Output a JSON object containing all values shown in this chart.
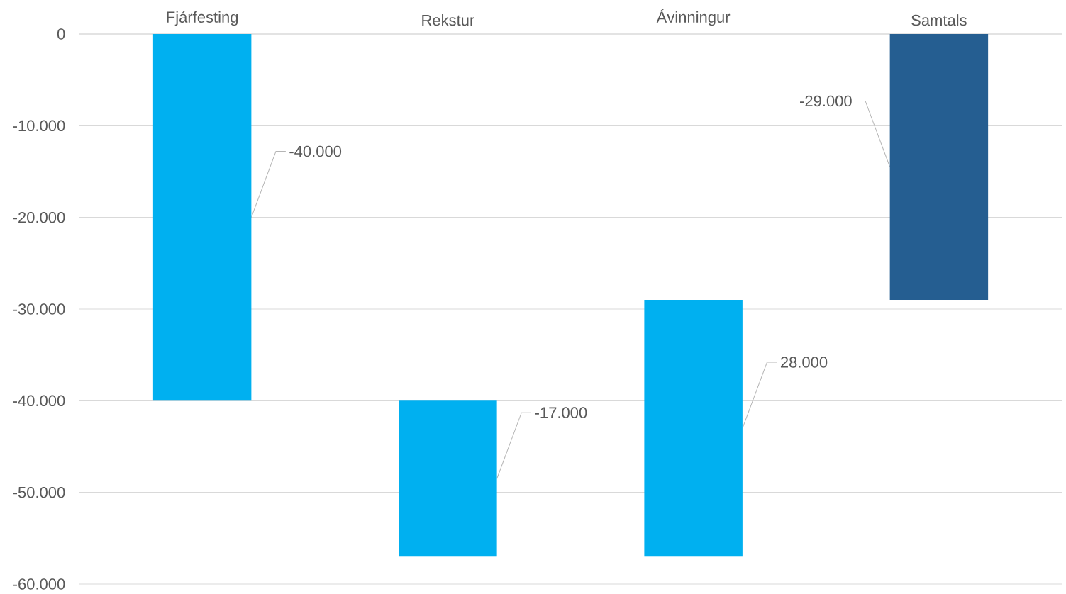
{
  "chart_data": {
    "type": "bar",
    "categories": [
      "Fjárfesting",
      "Rekstur",
      "Ávinningur",
      "Samtals"
    ],
    "values": [
      -40000,
      -17000,
      28000,
      -29000
    ],
    "base": [
      0,
      -40000,
      -57000,
      0
    ],
    "colors": [
      "#00b0f0",
      "#00b0f0",
      "#00b0f0",
      "#255e91"
    ],
    "value_labels": [
      "-40.000",
      "-17.000",
      "28.000",
      "-29.000"
    ],
    "ylim": [
      -60000,
      0
    ],
    "yticks": [
      {
        "value": -60000,
        "label": "-60.000"
      },
      {
        "value": -50000,
        "label": "-50.000"
      },
      {
        "value": -40000,
        "label": "-40.000"
      },
      {
        "value": -30000,
        "label": "-30.000"
      },
      {
        "value": -20000,
        "label": "-20.000"
      },
      {
        "value": -10000,
        "label": "-10.000"
      },
      0
    ],
    "grid": "y"
  }
}
